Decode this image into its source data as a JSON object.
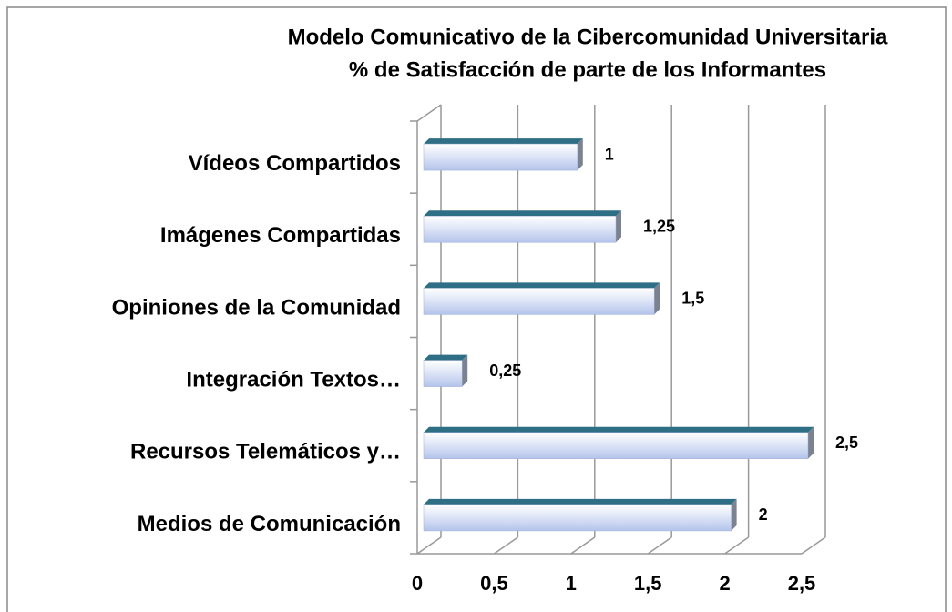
{
  "chart_data": {
    "type": "bar3d_horizontal",
    "title": "Modelo Comunicativo de la Cibercomunidad Universitaria",
    "subtitle": "% de Satisfacción de parte de los Informantes",
    "categories": [
      "Vídeos Compartidos",
      "Imágenes Compartidas",
      "Opiniones de la Comunidad",
      "Integración Textos…",
      "Recursos Telemáticos y…",
      "Medios de Comunicación"
    ],
    "values": [
      1,
      1.25,
      1.5,
      0.25,
      2.5,
      2
    ],
    "value_labels": [
      "1",
      "1,25",
      "1,5",
      "0,25",
      "2,5",
      "2"
    ],
    "color": "#2e6f86",
    "xlim": [
      0,
      2.5
    ],
    "xticks": [
      0,
      {
        "value": 0.5,
        "label": "0,5"
      },
      1,
      {
        "value": 1.5,
        "label": "1,5"
      },
      2,
      {
        "value": 2.5,
        "label": "2,5"
      }
    ],
    "grid": true
  }
}
